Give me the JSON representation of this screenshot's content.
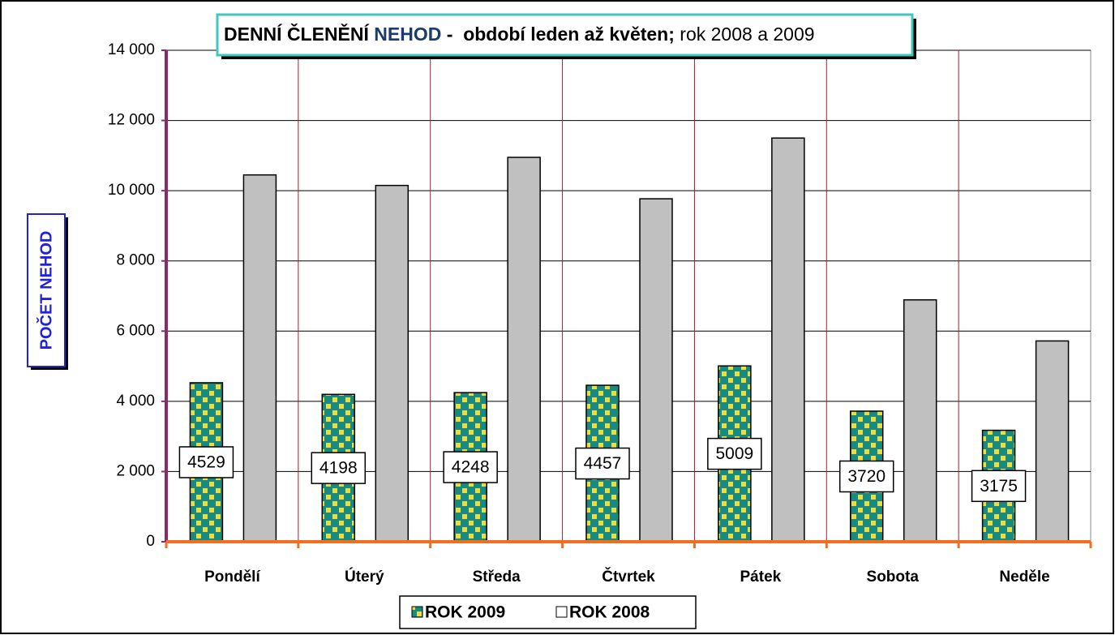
{
  "chart_data": {
    "type": "bar",
    "title_parts": [
      "DENNÍ ČLENĚNÍ ",
      "NEHOD",
      " -  období leden až květen;",
      " rok 2008 a 2009"
    ],
    "y_label": "POČET NEHOD",
    "categories": [
      "Pondělí",
      "Úterý",
      "Středa",
      "Čtvrtek",
      "Pátek",
      "Sobota",
      "Neděle"
    ],
    "series": [
      {
        "name": "ROK 2009",
        "color": "#1a8a80",
        "values": [
          4529,
          4198,
          4248,
          4457,
          5009,
          3720,
          3175
        ]
      },
      {
        "name": "ROK 2008",
        "color": "#c0c0c0",
        "values": [
          10450,
          10150,
          10950,
          9770,
          11500,
          6890,
          5720
        ]
      }
    ],
    "data_labels_series": 0,
    "ylim": [
      0,
      14000
    ],
    "yticks": [
      0,
      {
        "value": 2000,
        "label": "2 000"
      },
      {
        "value": 4000,
        "label": "4 000"
      },
      {
        "value": 6000,
        "label": "6 000"
      },
      {
        "value": 8000,
        "label": "8 000"
      },
      {
        "value": 10000,
        "label": "10 000"
      },
      {
        "value": 12000,
        "label": "12 000"
      },
      {
        "value": 14000,
        "label": "14 000"
      }
    ],
    "grid": true,
    "legend": "bottom"
  }
}
